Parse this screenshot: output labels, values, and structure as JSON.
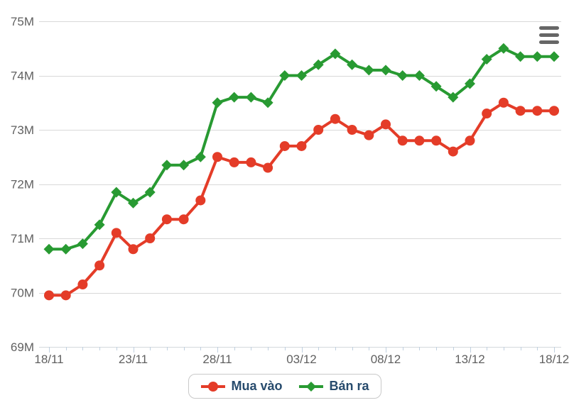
{
  "chart_data": {
    "type": "line",
    "title": "",
    "xlabel": "",
    "ylabel": "",
    "unit": "M",
    "ylim": [
      69,
      75
    ],
    "grid": "horizontal",
    "legend_position": "bottom-center",
    "x": [
      "18/11",
      "19/11",
      "20/11",
      "21/11",
      "22/11",
      "23/11",
      "24/11",
      "25/11",
      "26/11",
      "27/11",
      "28/11",
      "29/11",
      "30/11",
      "01/12",
      "02/12",
      "03/12",
      "04/12",
      "05/12",
      "06/12",
      "07/12",
      "08/12",
      "09/12",
      "10/12",
      "11/12",
      "12/12",
      "13/12",
      "14/12",
      "15/12",
      "16/12",
      "17/12",
      "18/12"
    ],
    "x_labeled_ticks": [
      {
        "index": 0,
        "label": "18/11"
      },
      {
        "index": 5,
        "label": "23/11"
      },
      {
        "index": 10,
        "label": "28/11"
      },
      {
        "index": 15,
        "label": "03/12"
      },
      {
        "index": 20,
        "label": "08/12"
      },
      {
        "index": 25,
        "label": "13/12"
      },
      {
        "index": 30,
        "label": "18/12"
      }
    ],
    "y_ticks": [
      {
        "value": 69,
        "label": "69M"
      },
      {
        "value": 70,
        "label": "70M"
      },
      {
        "value": 71,
        "label": "71M"
      },
      {
        "value": 72,
        "label": "72M"
      },
      {
        "value": 73,
        "label": "73M"
      },
      {
        "value": 74,
        "label": "74M"
      },
      {
        "value": 75,
        "label": "75M"
      }
    ],
    "series": [
      {
        "name": "Mua vào",
        "marker": "circle",
        "color": "#e43c28",
        "values": [
          69.95,
          69.95,
          70.15,
          70.5,
          71.1,
          70.8,
          71.0,
          71.35,
          71.35,
          71.7,
          72.5,
          72.4,
          72.4,
          72.3,
          72.7,
          72.7,
          73.0,
          73.2,
          73.0,
          72.9,
          73.1,
          72.8,
          72.8,
          72.8,
          72.6,
          72.8,
          73.3,
          73.5,
          73.35,
          73.35,
          73.35
        ]
      },
      {
        "name": "Bán ra",
        "marker": "diamond",
        "color": "#289a32",
        "values": [
          70.8,
          70.8,
          70.9,
          71.25,
          71.85,
          71.65,
          71.85,
          72.35,
          72.35,
          72.5,
          73.5,
          73.6,
          73.6,
          73.5,
          74.0,
          74.0,
          74.2,
          74.4,
          74.2,
          74.1,
          74.1,
          74.0,
          74.0,
          73.8,
          73.6,
          73.85,
          74.3,
          74.5,
          74.35,
          74.35,
          74.35
        ]
      }
    ]
  },
  "colors": {
    "gridline": "#d8d8d8",
    "axis_line": "#d4d8dc",
    "axis_tick": "#c0d0e0",
    "axis_label": "#606060",
    "legend_text": "#274b6d",
    "legend_border": "#c9c9c9",
    "menu_icon": "#666666",
    "background": "#ffffff"
  },
  "icons": {
    "export_menu": "hamburger-menu"
  }
}
